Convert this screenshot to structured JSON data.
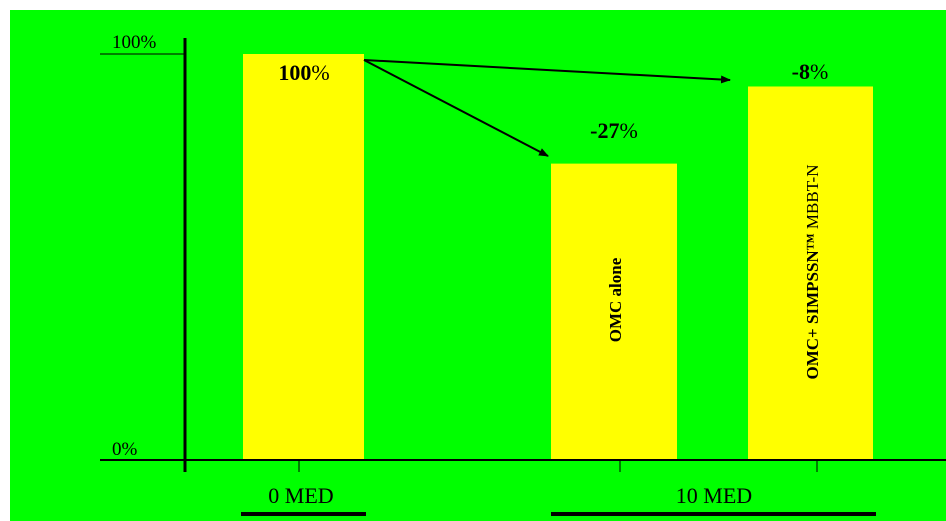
{
  "chart_data": {
    "type": "bar",
    "colors": {
      "background": "#00ff00",
      "bar": "#ffff00",
      "axis": "#000000"
    },
    "y_ticks": [
      "100%",
      "0%"
    ],
    "ylim": [
      0,
      100
    ],
    "groups": [
      {
        "label": "0 MED",
        "bars": [
          0
        ]
      },
      {
        "label": "10 MED",
        "bars": [
          1,
          2
        ]
      }
    ],
    "bars": [
      {
        "value": 100,
        "change": "100",
        "unit": "%",
        "inside_label": ""
      },
      {
        "value": 73,
        "change": "-27",
        "unit": "%",
        "inside_label": "OMC alone"
      },
      {
        "value": 92,
        "change": "-8",
        "unit": "%",
        "inside_label": "OMC+ SIMPSSN™",
        "inside_label_suffix": " MBBT-N"
      }
    ],
    "arrows": [
      {
        "from": 0,
        "to": 1
      },
      {
        "from": 0,
        "to": 2
      }
    ]
  }
}
